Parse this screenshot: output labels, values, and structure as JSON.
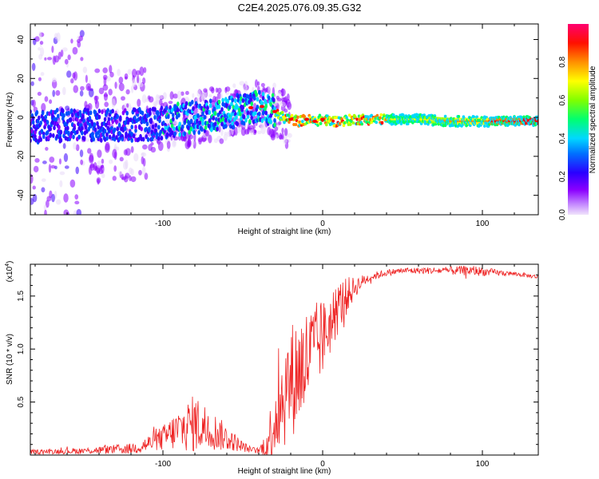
{
  "figure": {
    "title": "C2E4.2025.076.09.35.G32"
  },
  "chart_data": [
    {
      "type": "heatmap",
      "title": "",
      "xlabel": "Height of straight line (km)",
      "ylabel": "Frequency (Hz)",
      "xlim": [
        -183,
        135
      ],
      "ylim": [
        -50,
        48
      ],
      "xticks": [
        -100,
        0,
        100
      ],
      "xtick_labels": [
        "-100",
        "0",
        "100"
      ],
      "yticks": [
        -40,
        -20,
        0,
        20,
        40
      ],
      "ytick_labels": [
        "-40",
        "-20",
        "0",
        "20",
        "40"
      ],
      "colorbar": {
        "label": "Normalized spectral amplitude",
        "range": [
          0,
          1
        ],
        "ticks": [
          0,
          0.2,
          0.4,
          0.6,
          0.8
        ],
        "tick_labels": [
          "0.0",
          "0.2",
          "0.4",
          "0.6",
          "0.8"
        ],
        "colormap": [
          "#e8d8f8",
          "#8b00ff",
          "#3a00ff",
          "#0050ff",
          "#00d8ff",
          "#00ff60",
          "#a0ff00",
          "#ffff00",
          "#ff8000",
          "#ff0000",
          "#ff0070"
        ]
      },
      "ridge": {
        "x": [
          -183,
          -160,
          -140,
          -120,
          -100,
          -90,
          -80,
          -70,
          -60,
          -50,
          -45,
          -40,
          -35,
          -30,
          -28,
          -25,
          -20,
          -15,
          -10,
          -5,
          0,
          5,
          10,
          20,
          30,
          40,
          60,
          80,
          100,
          120,
          135
        ],
        "y": [
          -5,
          -4,
          -4,
          -4,
          -3,
          -1,
          0,
          1,
          2,
          4,
          5,
          6,
          5,
          3,
          1,
          0,
          -1,
          -2,
          -1,
          -2,
          -1,
          -2,
          -2,
          -1,
          -1,
          -1,
          -1,
          -2,
          -2,
          -2,
          -2
        ]
      }
    },
    {
      "type": "line",
      "title": "",
      "xlabel": "Height of straight line (km)",
      "ylabel": "SNR (10 * v/v)",
      "y_multiplier": "(x10",
      "y_multiplier_exp": "4",
      "y_multiplier_close": ")",
      "xlim": [
        -183,
        135
      ],
      "ylim": [
        0,
        1.8
      ],
      "xticks": [
        -100,
        0,
        100
      ],
      "xtick_labels": [
        "-100",
        "0",
        "100"
      ],
      "yticks": [
        0.5,
        1.0,
        1.5
      ],
      "ytick_labels": [
        "0.5",
        "1.0",
        "1.5"
      ],
      "color": "#ee2222",
      "series_envelope": {
        "x": [
          -183,
          -150,
          -120,
          -110,
          -100,
          -90,
          -80,
          -70,
          -60,
          -50,
          -45,
          -40,
          -35,
          -30,
          -25,
          -20,
          -15,
          -10,
          -5,
          0,
          5,
          10,
          15,
          20,
          25,
          30,
          40,
          50,
          60,
          80,
          95,
          100,
          110,
          120,
          135
        ],
        "base": [
          0.03,
          0.04,
          0.06,
          0.1,
          0.16,
          0.24,
          0.3,
          0.24,
          0.16,
          0.08,
          0.05,
          0.04,
          0.1,
          0.35,
          0.55,
          0.7,
          0.8,
          0.9,
          1.0,
          1.1,
          1.25,
          1.4,
          1.5,
          1.58,
          1.64,
          1.68,
          1.72,
          1.74,
          1.74,
          1.74,
          1.74,
          1.73,
          1.72,
          1.71,
          1.68
        ],
        "noise": [
          0.02,
          0.03,
          0.05,
          0.08,
          0.12,
          0.2,
          0.28,
          0.2,
          0.12,
          0.05,
          0.03,
          0.03,
          0.15,
          0.4,
          0.5,
          0.55,
          0.55,
          0.5,
          0.45,
          0.35,
          0.3,
          0.25,
          0.18,
          0.1,
          0.06,
          0.04,
          0.03,
          0.03,
          0.03,
          0.04,
          0.05,
          0.04,
          0.03,
          0.02,
          0.02
        ]
      }
    }
  ]
}
